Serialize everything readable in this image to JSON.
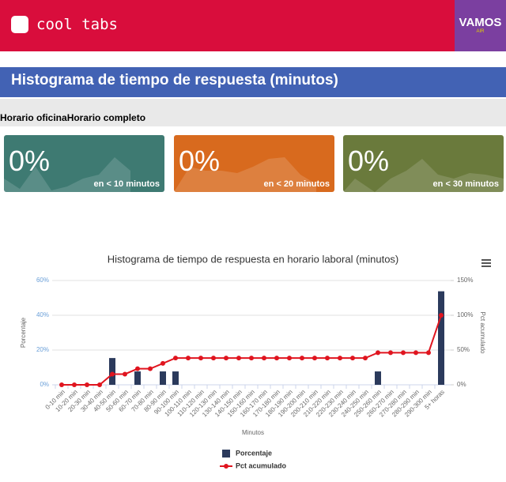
{
  "header": {
    "logo_text": "cool tabs",
    "partner_logo": "VAMOS",
    "partner_sub": "AIR"
  },
  "page_title": "Histograma de tiempo de respuesta (minutos)",
  "tabs": [
    "Horario oficina",
    "Horario completo"
  ],
  "cards": [
    {
      "value": "0%",
      "label": "en < 10 minutos"
    },
    {
      "value": "0%",
      "label": "en < 20 minutos"
    },
    {
      "value": "0%",
      "label": "en < 30 minutos"
    }
  ],
  "chart_data": {
    "type": "combo",
    "title": "Histograma de tiempo de respuesta en horario laboral (minutos)",
    "x_label": "Minutos",
    "y_label": "Porcentaje",
    "y2_label": "Pct acumulado",
    "categories": [
      "0-10 min",
      "10-20 min",
      "20-30 min",
      "30-40 min",
      "40-50 min",
      "50-60 min",
      "60-70 min",
      "70-80 min",
      "80-90 min",
      "90-100 min",
      "100-110 min",
      "110-120 min",
      "120-130 min",
      "130-140 min",
      "140-150 min",
      "150-160 min",
      "160-170 min",
      "170-180 min",
      "180-190 min",
      "190-200 min",
      "200-210 min",
      "210-220 min",
      "220-230 min",
      "230-240 min",
      "240-250 min",
      "250-260 min",
      "260-270 min",
      "270-280 min",
      "280-290 min",
      "290-300 min",
      "5+ horas"
    ],
    "series": [
      {
        "name": "Porcentaje",
        "type": "bar",
        "color": "#2b3a5c",
        "values": [
          0,
          0,
          0,
          0,
          15.4,
          0,
          7.7,
          0,
          7.7,
          7.7,
          0,
          0,
          0,
          0,
          0,
          0,
          0,
          0,
          0,
          0,
          0,
          0,
          0,
          0,
          0,
          7.7,
          0,
          0,
          0,
          0,
          53.8
        ]
      },
      {
        "name": "Pct acumulado",
        "type": "line",
        "axis": "y2",
        "color": "#e0151f",
        "values": [
          0,
          0,
          0,
          0,
          15.4,
          15.4,
          23.1,
          23.1,
          30.8,
          38.5,
          38.5,
          38.5,
          38.5,
          38.5,
          38.5,
          38.5,
          38.5,
          38.5,
          38.5,
          38.5,
          38.5,
          38.5,
          38.5,
          38.5,
          38.5,
          46.2,
          46.2,
          46.2,
          46.2,
          46.2,
          100
        ]
      }
    ],
    "ylim": [
      0,
      60
    ],
    "yticks": [
      {
        "value": 0,
        "label": "0%"
      },
      {
        "value": 20,
        "label": "20%"
      },
      {
        "value": 40,
        "label": "40%"
      },
      {
        "value": 60,
        "label": "60%"
      }
    ],
    "y2lim": [
      0,
      150
    ],
    "y2ticks": [
      {
        "value": 0,
        "label": "0%"
      },
      {
        "value": 50,
        "label": "50%"
      },
      {
        "value": 100,
        "label": "100%"
      },
      {
        "value": 150,
        "label": "150%"
      }
    ],
    "grid": true,
    "legend": "bottom"
  }
}
